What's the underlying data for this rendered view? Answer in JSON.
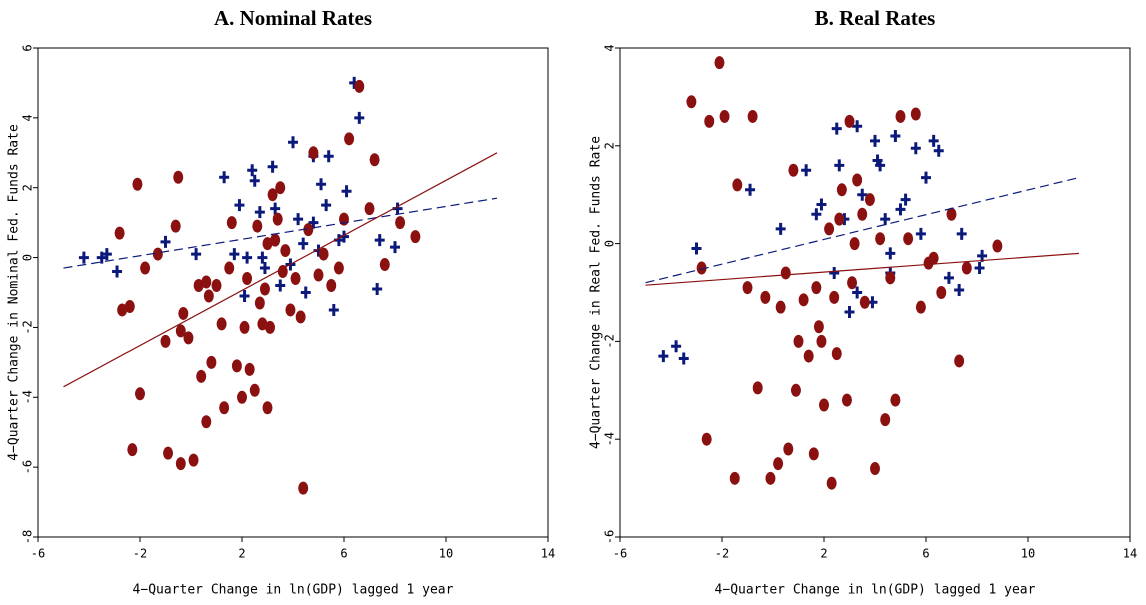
{
  "chart_data": [
    {
      "type": "scatter",
      "title": "A. Nominal Rates",
      "xlabel": "4−Quarter Change in ln(GDP) lagged 1 year",
      "ylabel": "4−Quarter Change in Nominal Fed. Funds Rate",
      "xlim": [
        -6,
        14
      ],
      "ylim": [
        -8,
        6
      ],
      "xticks": [
        -6,
        -2,
        2,
        6,
        10,
        14
      ],
      "yticks": [
        -8,
        -6,
        -4,
        -2,
        0,
        2,
        4,
        6
      ],
      "series": [
        {
          "color": "#0b1a7a",
          "marker": "plus",
          "x": [
            -4.2,
            -3.5,
            -3.3,
            -2.9,
            -1,
            0.2,
            1.3,
            1.7,
            2.2,
            2.4,
            2.5,
            2.7,
            2.8,
            2.9,
            3.2,
            3.3,
            3.5,
            4,
            4.2,
            4.4,
            4.8,
            5,
            5.1,
            5.4,
            5.6,
            5.8,
            6,
            6.1,
            6.4,
            6.6,
            7.3,
            7.4,
            8,
            8.1,
            4.8,
            5.3,
            3.9,
            2.1,
            1.9,
            4.5
          ],
          "values": [
            0,
            0,
            0.1,
            -0.4,
            0.45,
            0.1,
            2.3,
            0.1,
            0,
            2.5,
            2.2,
            1.3,
            0,
            -0.3,
            2.6,
            1.4,
            -0.8,
            3.3,
            1.1,
            0.4,
            1,
            0.2,
            2.1,
            2.9,
            -1.5,
            0.5,
            0.6,
            1.9,
            5,
            4,
            -0.9,
            0.5,
            0.3,
            1.4,
            2.9,
            1.5,
            -0.2,
            -1.1,
            1.5,
            -1
          ]
        },
        {
          "color": "#8b1010",
          "marker": "ellipse",
          "x": [
            -2.8,
            -2.7,
            -2.4,
            -2.1,
            -1.8,
            -2,
            -1.3,
            -0.6,
            -0.5,
            -0.4,
            -0.3,
            -0.1,
            0.3,
            0.6,
            0.7,
            0.4,
            0.8,
            1,
            1.2,
            1.3,
            1.5,
            1.6,
            1.8,
            2,
            2.1,
            2.2,
            2.3,
            2.5,
            2.6,
            2.7,
            2.9,
            3,
            3.1,
            3.2,
            3.3,
            3.4,
            3.5,
            3.6,
            3.7,
            3.9,
            4.1,
            4.3,
            4.4,
            4.6,
            4.8,
            5,
            5.2,
            5.5,
            5.8,
            6,
            6.2,
            6.6,
            7,
            7.2,
            7.6,
            8.2,
            8.8,
            -2.3,
            -0.9,
            -0.4,
            0.1,
            0.6,
            -1,
            3,
            2.8
          ],
          "values": [
            0.7,
            -1.5,
            -1.4,
            2.1,
            -0.3,
            -3.9,
            0.1,
            0.9,
            2.3,
            -2.1,
            -1.6,
            -2.3,
            -0.8,
            -0.7,
            -1.1,
            -3.4,
            -3,
            -0.8,
            -1.9,
            -4.3,
            -0.3,
            1,
            -3.1,
            -4,
            -2,
            -0.6,
            -3.2,
            -3.8,
            0.9,
            -1.3,
            -0.9,
            0.4,
            -2,
            1.8,
            0.5,
            1.1,
            2,
            -0.4,
            0.2,
            -1.5,
            -0.6,
            -1.7,
            -6.6,
            0.8,
            3,
            -0.5,
            0.1,
            -0.8,
            -0.3,
            1.1,
            3.4,
            4.9,
            1.4,
            2.8,
            -0.2,
            1,
            0.6,
            -5.5,
            -5.6,
            -5.9,
            -5.8,
            -4.7,
            -2.4,
            -4.3,
            -1.9
          ]
        },
        {
          "color": "#0b1a7a",
          "marker": "none",
          "dash": true,
          "x": [
            -5,
            12
          ],
          "values": [
            -0.3,
            1.7
          ]
        },
        {
          "color": "#8b1010",
          "marker": "none",
          "dash": false,
          "x": [
            -5,
            12
          ],
          "values": [
            -3.7,
            3
          ]
        }
      ]
    },
    {
      "type": "scatter",
      "title": "B. Real Rates",
      "xlabel": "4−Quarter Change in ln(GDP) lagged 1 year",
      "ylabel": "4−Quarter Change in Real Fed. Funds Rate",
      "xlim": [
        -6,
        14
      ],
      "ylim": [
        -6,
        4
      ],
      "xticks": [
        -6,
        -2,
        2,
        6,
        10,
        14
      ],
      "yticks": [
        -6,
        -4,
        -2,
        0,
        2,
        4
      ],
      "series": [
        {
          "color": "#0b1a7a",
          "marker": "plus",
          "x": [
            -4.3,
            -3.8,
            -3.5,
            -3,
            -0.9,
            0.3,
            1.3,
            1.7,
            1.9,
            2.4,
            2.5,
            2.6,
            2.8,
            3,
            3.3,
            3.5,
            3.9,
            4,
            4.1,
            4.2,
            4.4,
            4.6,
            4.8,
            5,
            5.2,
            5.6,
            5.8,
            6,
            6.3,
            6.5,
            6.9,
            7.3,
            7.4,
            8.1,
            8.2,
            3.3,
            4.6
          ],
          "values": [
            -2.3,
            -2.1,
            -2.35,
            -0.1,
            1.1,
            0.3,
            1.5,
            0.6,
            0.8,
            -0.6,
            2.35,
            1.6,
            0.5,
            -1.4,
            2.4,
            1,
            -1.2,
            2.1,
            1.7,
            1.6,
            0.5,
            -0.2,
            2.2,
            0.7,
            0.9,
            1.95,
            0.2,
            1.35,
            2.1,
            1.9,
            -0.7,
            -0.95,
            0.2,
            -0.5,
            -0.25,
            -1,
            -0.6
          ]
        },
        {
          "color": "#8b1010",
          "marker": "ellipse",
          "x": [
            -3.2,
            -2.8,
            -2.6,
            -2.5,
            -2.1,
            -1.9,
            -1.4,
            -1,
            -0.8,
            -0.6,
            -0.3,
            -0.1,
            0.3,
            0.5,
            0.6,
            0.8,
            1,
            1.2,
            1.4,
            1.6,
            1.7,
            1.8,
            2,
            2.2,
            2.3,
            2.4,
            2.5,
            2.7,
            2.9,
            3,
            3.2,
            3.3,
            3.6,
            3.8,
            4,
            4.2,
            4.4,
            4.6,
            4.8,
            5,
            5.3,
            5.6,
            5.8,
            6.1,
            6.6,
            7,
            7.3,
            7.6,
            8.8,
            -1.5,
            0.2,
            0.9,
            1.9,
            3.5,
            3.1,
            2.6,
            6.3
          ],
          "values": [
            2.9,
            -0.5,
            -4,
            2.5,
            3.7,
            2.6,
            1.2,
            -0.9,
            2.6,
            -2.95,
            -1.1,
            -4.8,
            -1.3,
            -0.6,
            -4.2,
            1.5,
            -2,
            -1.15,
            -2.3,
            -4.3,
            -0.9,
            -1.7,
            -3.3,
            0.3,
            -4.9,
            -1.1,
            -2.25,
            1.1,
            -3.2,
            2.5,
            0,
            1.3,
            -1.2,
            0.9,
            -4.6,
            0.1,
            -3.6,
            -0.7,
            -3.2,
            2.6,
            0.1,
            2.65,
            -1.3,
            -0.4,
            -1,
            0.6,
            -2.4,
            -0.5,
            -0.05,
            -4.8,
            -4.5,
            -3,
            -2,
            0.6,
            -0.8,
            0.5,
            -0.3
          ]
        },
        {
          "color": "#0b1a7a",
          "marker": "none",
          "dash": true,
          "x": [
            -5,
            12
          ],
          "values": [
            -0.8,
            1.35
          ]
        },
        {
          "color": "#8b1010",
          "marker": "none",
          "dash": false,
          "x": [
            -5,
            12
          ],
          "values": [
            -0.85,
            -0.2
          ]
        }
      ]
    }
  ]
}
